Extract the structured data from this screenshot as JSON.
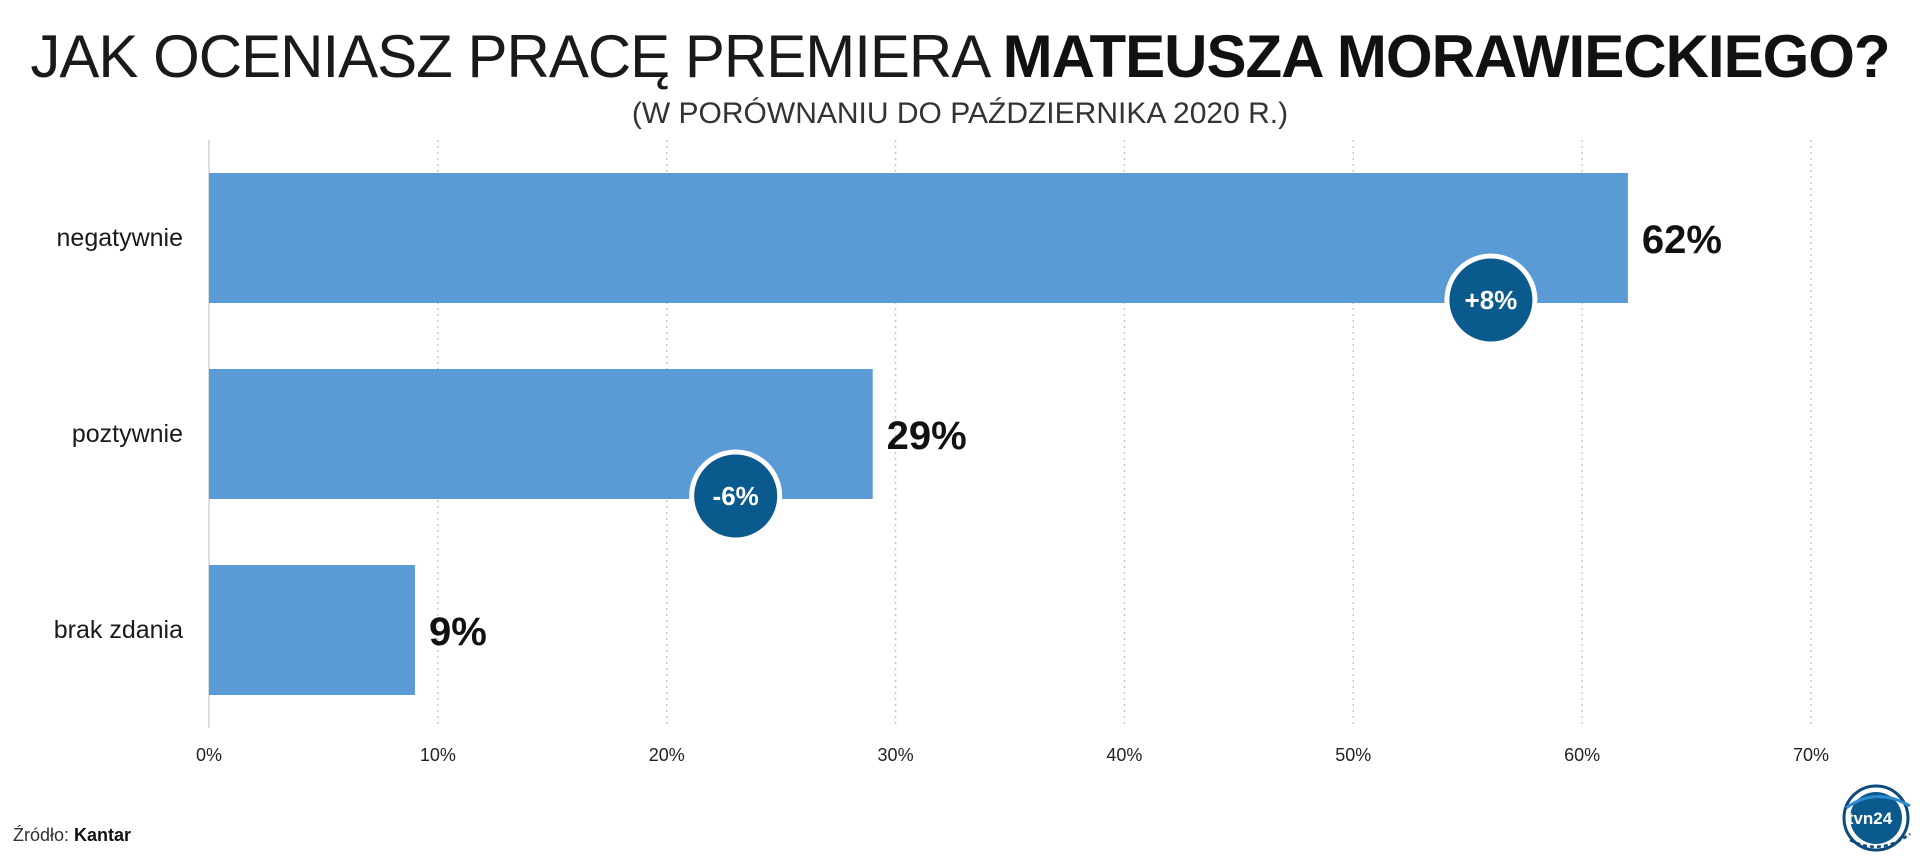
{
  "header": {
    "title_regular": "JAK OCENIASZ PRACĘ PREMIERA",
    "title_bold": "MATEUSZA MORAWIECKIEGO?",
    "subtitle": "(W PORÓWNANIU DO PAŹDZIERNIKA 2020 R.)"
  },
  "chart_data": {
    "type": "bar",
    "orientation": "horizontal",
    "categories": [
      "negatywnie",
      "poztywnie",
      "brak zdania"
    ],
    "values": [
      62,
      29,
      9
    ],
    "value_labels": [
      "62%",
      "29%",
      "9%"
    ],
    "change_labels": [
      "+8%",
      "-6%",
      ""
    ],
    "xlim": [
      0,
      70
    ],
    "xticks": [
      "0%",
      "10%",
      "20%",
      "30%",
      "40%",
      "50%",
      "60%",
      "70%"
    ],
    "grid": true,
    "colors": {
      "bar": "#5b9bd5",
      "badge": "#0b5a8e",
      "badge_text": "#ffffff",
      "grid": "#c8c8c8"
    }
  },
  "footer": {
    "source_prefix": "Źródło:",
    "source_name": "Kantar",
    "logo_text": "tvn24"
  }
}
